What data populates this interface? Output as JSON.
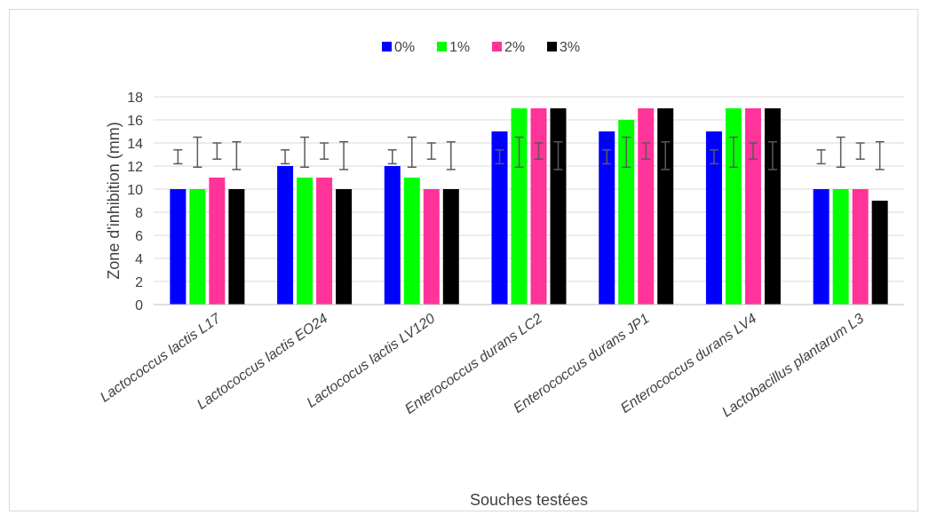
{
  "chart_data": {
    "type": "bar",
    "title": "",
    "xlabel": "Souches testées",
    "ylabel": "Zone d'inhibition (mm)",
    "ylim": [
      0,
      18
    ],
    "yticks": [
      0,
      2,
      4,
      6,
      8,
      10,
      12,
      14,
      16,
      18
    ],
    "ytick_labels": [
      "0",
      "2",
      "4",
      "6",
      "8",
      "10",
      "12",
      "14",
      "16",
      "18"
    ],
    "grid": true,
    "legend_position": "top",
    "categories": [
      "Lactococcus lactis L17",
      "Lactococcus lactis EO24",
      "Lactococus lactis LV120",
      "Enterococcus durans LC2",
      "Enterococcus durans JP1",
      "Enterococcus durans LV4",
      "Lactobacillus plantarum L3"
    ],
    "series": [
      {
        "name": "0%",
        "color": "#0000ff",
        "values": [
          10,
          12,
          12,
          15,
          15,
          15,
          10
        ],
        "error_bar": {
          "low": 12.2,
          "high": 13.4
        }
      },
      {
        "name": "1%",
        "color": "#00ff00",
        "values": [
          10,
          11,
          11,
          17,
          16,
          17,
          10
        ],
        "error_bar": {
          "low": 11.9,
          "high": 14.5
        }
      },
      {
        "name": "2%",
        "color": "#ff3399",
        "values": [
          11,
          11,
          10,
          17,
          17,
          17,
          10
        ],
        "error_bar": {
          "low": 12.6,
          "high": 14.0
        }
      },
      {
        "name": "3%",
        "color": "#000000",
        "values": [
          10,
          10,
          10,
          17,
          17,
          17,
          9
        ],
        "error_bar": {
          "low": 11.7,
          "high": 14.1
        }
      }
    ]
  }
}
